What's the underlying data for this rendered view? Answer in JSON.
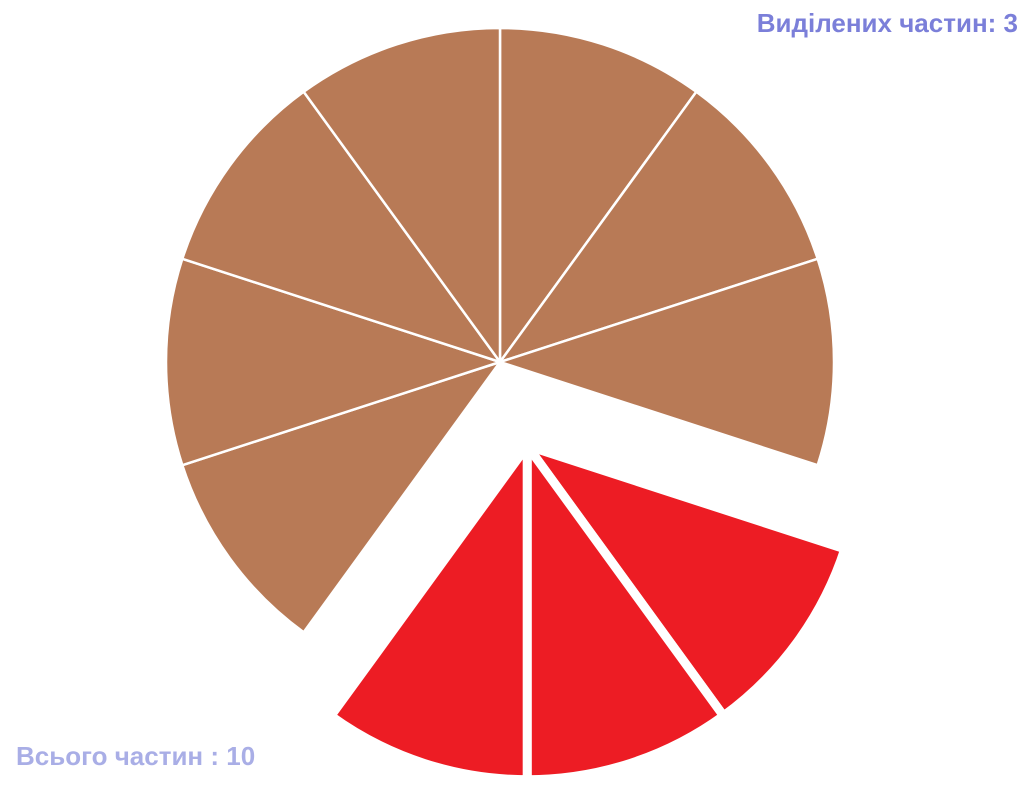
{
  "labels": {
    "selected": "Виділених частин: 3",
    "total": "Всього частин : 10"
  },
  "fraction": {
    "total_parts": 10,
    "selected_parts": 3
  },
  "colors": {
    "unselected": "#b87a56",
    "selected": "#ed1c24",
    "selected_outline": "#f7c600",
    "separator": "#ffffff",
    "selected_label": "#7b7fd9",
    "total_label": "#a9aee6"
  }
}
